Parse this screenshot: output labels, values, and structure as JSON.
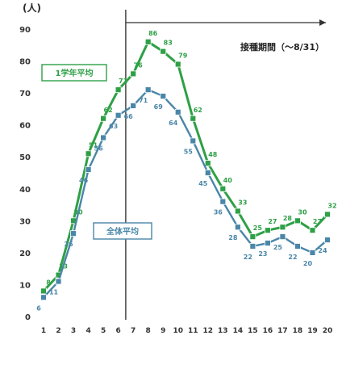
{
  "chart_data": {
    "type": "line",
    "ylabel": "(人)",
    "ylim": [
      0,
      90
    ],
    "yticks": [
      0,
      10,
      20,
      30,
      40,
      50,
      60,
      70,
      80,
      90
    ],
    "x": [
      "1",
      "2",
      "3",
      "4",
      "5",
      "6",
      "7",
      "8",
      "9",
      "10",
      "11",
      "12",
      "13",
      "14",
      "15",
      "16",
      "17",
      "18",
      "19",
      "20"
    ],
    "series": [
      {
        "name": "",
        "color": "#2ea046",
        "values": [
          8,
          13,
          30,
          51,
          62,
          71,
          76,
          86,
          83,
          79,
          62,
          48,
          40,
          33,
          25,
          27,
          28,
          30,
          27,
          32
        ]
      },
      {
        "name": "",
        "color": "#4a86a8",
        "values": [
          6,
          11,
          26,
          46,
          56,
          63,
          66,
          71,
          69,
          64,
          55,
          45,
          36,
          28,
          22,
          23,
          25,
          22,
          20,
          24
        ]
      }
    ],
    "vertical_marker_after_index": 5,
    "annotations": [
      {
        "id": "vaccination_period",
        "text": "接種期間（〜8/31）",
        "arrow": "right"
      },
      {
        "id": "legend_box_upper",
        "text": "1学年平均"
      },
      {
        "id": "legend_box_lower",
        "text": "全体平均"
      }
    ],
    "grid": false,
    "legend": "boxed labels inside plot"
  }
}
